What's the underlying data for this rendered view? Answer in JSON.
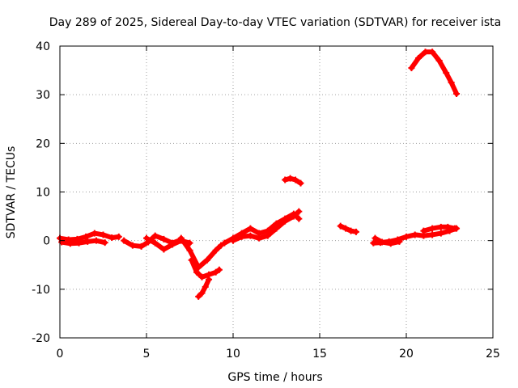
{
  "chart_data": {
    "type": "scatter",
    "title": "Day 289 of 2025, Sidereal Day-to-day VTEC variation (SDTVAR) for receiver ista",
    "xlabel": "GPS time / hours",
    "ylabel": "SDTVAR / TECUs",
    "xlim": [
      0,
      25
    ],
    "ylim": [
      -20,
      40
    ],
    "xticks": [
      0,
      5,
      10,
      15,
      20,
      25
    ],
    "yticks": [
      -20,
      -10,
      0,
      10,
      20,
      30,
      40
    ],
    "xtick_labels": [
      "0",
      "5",
      "10",
      "15",
      "20",
      "25"
    ],
    "ytick_labels": [
      "-20",
      "-10",
      "0",
      "10",
      "20",
      "30",
      "40"
    ],
    "grid": true,
    "legend": "none",
    "series_color": "#ff0000",
    "series": [
      {
        "name": "s1",
        "x": [
          0.0,
          0.5,
          1.0,
          1.5,
          2.0,
          2.5,
          3.0,
          3.4
        ],
        "y": [
          0.5,
          0.2,
          0.3,
          0.8,
          1.5,
          1.2,
          0.6,
          0.8
        ]
      },
      {
        "name": "s2",
        "x": [
          0.1,
          0.6,
          1.1,
          1.6,
          2.1,
          2.6
        ],
        "y": [
          -0.3,
          -0.6,
          -0.5,
          -0.2,
          0.0,
          -0.4
        ]
      },
      {
        "name": "s3",
        "x": [
          3.7,
          4.2,
          4.7,
          5.1,
          5.5,
          6.0,
          6.5,
          7.0
        ],
        "y": [
          0.0,
          -1.0,
          -1.2,
          -0.3,
          1.0,
          0.3,
          -0.5,
          0.2
        ]
      },
      {
        "name": "s4",
        "x": [
          5.0,
          5.5,
          6.0,
          6.5,
          7.0,
          7.5
        ],
        "y": [
          0.5,
          -0.5,
          -1.8,
          -0.8,
          0.0,
          -0.5
        ]
      },
      {
        "name": "s5",
        "x": [
          7.0,
          7.5,
          8.0,
          8.5,
          9.0,
          9.3
        ],
        "y": [
          0.5,
          -2.0,
          -5.5,
          -4.0,
          -2.0,
          -1.0
        ]
      },
      {
        "name": "s6",
        "x": [
          7.6,
          7.9,
          8.2,
          8.6,
          9.0,
          9.2
        ],
        "y": [
          -4.0,
          -6.5,
          -7.5,
          -7.0,
          -6.5,
          -6.0
        ]
      },
      {
        "name": "s7",
        "x": [
          8.0,
          8.2,
          8.4,
          8.6
        ],
        "y": [
          -11.5,
          -10.8,
          -9.5,
          -8.0
        ]
      },
      {
        "name": "s8",
        "x": [
          9.5,
          10.0,
          10.5,
          11.0,
          11.5,
          12.0,
          12.5,
          13.0,
          13.5,
          13.8
        ],
        "y": [
          -0.5,
          0.5,
          1.5,
          2.5,
          1.5,
          2.0,
          3.5,
          4.5,
          5.5,
          4.5
        ]
      },
      {
        "name": "s9",
        "x": [
          10.0,
          10.5,
          11.0,
          11.5,
          12.0,
          12.5,
          13.0,
          13.5,
          13.8
        ],
        "y": [
          0.0,
          0.8,
          1.0,
          0.5,
          1.0,
          2.5,
          4.0,
          5.0,
          6.0
        ]
      },
      {
        "name": "s10",
        "x": [
          13.0,
          13.3,
          13.6,
          13.9
        ],
        "y": [
          12.5,
          12.8,
          12.5,
          11.8
        ]
      },
      {
        "name": "s11",
        "x": [
          16.2,
          16.5,
          16.8,
          17.1
        ],
        "y": [
          3.0,
          2.5,
          2.0,
          1.8
        ]
      },
      {
        "name": "s12",
        "x": [
          18.1,
          18.5,
          19.0,
          19.5,
          20.0,
          20.5,
          21.0,
          21.5,
          22.0,
          22.5,
          22.9
        ],
        "y": [
          -0.5,
          -0.4,
          -0.2,
          0.2,
          0.8,
          1.2,
          1.0,
          1.2,
          1.5,
          2.0,
          2.5
        ]
      },
      {
        "name": "s13",
        "x": [
          18.2,
          18.6,
          19.1,
          19.6
        ],
        "y": [
          0.5,
          -0.3,
          -0.6,
          -0.2
        ]
      },
      {
        "name": "s14",
        "x": [
          21.0,
          21.5,
          22.0,
          22.4,
          22.8
        ],
        "y": [
          2.0,
          2.5,
          2.8,
          2.8,
          2.5
        ]
      },
      {
        "name": "s15",
        "x": [
          20.3,
          20.7,
          21.1,
          21.5,
          21.9,
          22.3,
          22.6,
          22.9
        ],
        "y": [
          35.5,
          37.5,
          38.8,
          38.8,
          37.0,
          34.5,
          32.5,
          30.2
        ]
      }
    ]
  }
}
